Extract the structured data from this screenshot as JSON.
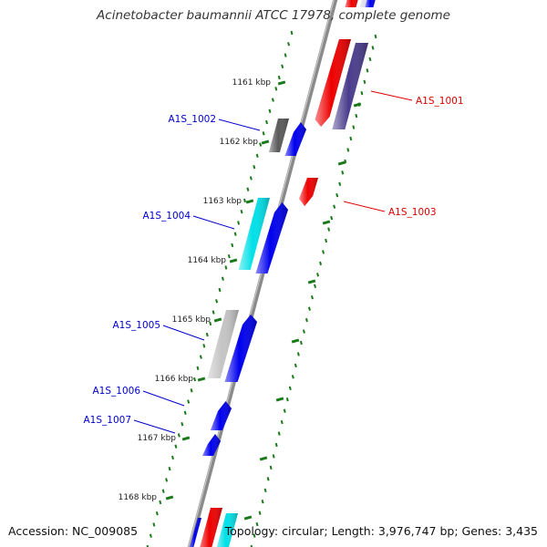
{
  "title": "Acinetobacter baumannii ATCC 17978, complete genome",
  "footer": {
    "accession": "Accession: NC_009085",
    "topology": "Topology: circular; Length: 3,976,747 bp; Genes: 3,435"
  },
  "colors": {
    "background": "#ffffff",
    "backbone": "#8a8a8a",
    "tick_ring": "#1a7a1a",
    "forward_label": "#0000cc",
    "reverse_label": "#dd0000",
    "blue": "#0000ee",
    "red": "#ee0000",
    "cyan": "#00e0e8",
    "navy": "#4a3c8c",
    "dark_gray": "#5a5a5a",
    "light_gray": "#c4c4c4"
  },
  "ticks": [
    "1161 kbp",
    "1162 kbp",
    "1163 kbp",
    "1164 kbp",
    "1165 kbp",
    "1166 kbp",
    "1167 kbp",
    "1168 kbp"
  ],
  "gene_labels": [
    {
      "name": "A1S_1001",
      "strand": "reverse"
    },
    {
      "name": "A1S_1002",
      "strand": "forward"
    },
    {
      "name": "A1S_1003",
      "strand": "reverse"
    },
    {
      "name": "A1S_1004",
      "strand": "forward"
    },
    {
      "name": "A1S_1005",
      "strand": "forward"
    },
    {
      "name": "A1S_1006",
      "strand": "forward"
    },
    {
      "name": "A1S_1007",
      "strand": "forward"
    }
  ]
}
